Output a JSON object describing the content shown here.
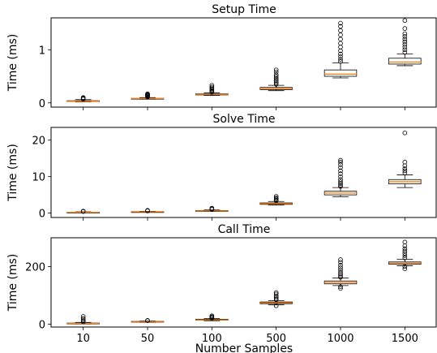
{
  "chart_data": [
    {
      "type": "box",
      "title": "Setup Time",
      "ylabel": "Time (ms)",
      "xlabel": "",
      "categories": [
        "10",
        "50",
        "100",
        "500",
        "1000",
        "1500"
      ],
      "ylim": [
        -0.08,
        1.6
      ],
      "yticks": [
        0,
        1
      ],
      "tick_labels": [
        "0",
        "1"
      ],
      "show_x_tick_labels": false,
      "boxes": [
        {
          "category": "10",
          "whislo": 0.02,
          "q1": 0.025,
          "med": 0.03,
          "q3": 0.04,
          "whishi": 0.06,
          "fliers": [
            0.07,
            0.08,
            0.09,
            0.1
          ]
        },
        {
          "category": "50",
          "whislo": 0.07,
          "q1": 0.075,
          "med": 0.08,
          "q3": 0.085,
          "whishi": 0.1,
          "fliers": [
            0.11,
            0.12,
            0.13,
            0.14,
            0.15,
            0.16,
            0.17
          ]
        },
        {
          "category": "100",
          "whislo": 0.14,
          "q1": 0.15,
          "med": 0.16,
          "q3": 0.17,
          "whishi": 0.19,
          "fliers": [
            0.2,
            0.22,
            0.24,
            0.26,
            0.28,
            0.3,
            0.33
          ]
        },
        {
          "category": "500",
          "whislo": 0.23,
          "q1": 0.25,
          "med": 0.27,
          "q3": 0.29,
          "whishi": 0.33,
          "fliers": [
            0.35,
            0.38,
            0.41,
            0.44,
            0.47,
            0.5,
            0.53,
            0.58,
            0.62
          ]
        },
        {
          "category": "1000",
          "whislo": 0.47,
          "q1": 0.5,
          "med": 0.54,
          "q3": 0.62,
          "whishi": 0.75,
          "fliers": [
            0.78,
            0.82,
            0.87,
            0.92,
            0.98,
            1.05,
            1.12,
            1.2,
            1.28,
            1.36,
            1.44,
            1.5
          ]
        },
        {
          "category": "1500",
          "whislo": 0.7,
          "q1": 0.73,
          "med": 0.77,
          "q3": 0.84,
          "whishi": 0.92,
          "fliers": [
            0.95,
            1.0,
            1.05,
            1.1,
            1.15,
            1.2,
            1.25,
            1.3,
            1.4,
            1.55
          ]
        }
      ]
    },
    {
      "type": "box",
      "title": "Solve Time",
      "ylabel": "Time (ms)",
      "xlabel": "",
      "categories": [
        "10",
        "50",
        "100",
        "500",
        "1000",
        "1500"
      ],
      "ylim": [
        -1.2,
        23.5
      ],
      "yticks": [
        0,
        10,
        20
      ],
      "tick_labels": [
        "0",
        "10",
        "20"
      ],
      "show_x_tick_labels": false,
      "boxes": [
        {
          "category": "10",
          "whislo": 0.1,
          "q1": 0.15,
          "med": 0.2,
          "q3": 0.25,
          "whishi": 0.35,
          "fliers": [
            0.45,
            0.55
          ]
        },
        {
          "category": "50",
          "whislo": 0.25,
          "q1": 0.3,
          "med": 0.35,
          "q3": 0.4,
          "whishi": 0.5,
          "fliers": [
            0.6,
            0.75
          ]
        },
        {
          "category": "100",
          "whislo": 0.5,
          "q1": 0.55,
          "med": 0.6,
          "q3": 0.7,
          "whishi": 0.85,
          "fliers": [
            1.0,
            1.2,
            1.35
          ]
        },
        {
          "category": "500",
          "whislo": 2.2,
          "q1": 2.4,
          "med": 2.6,
          "q3": 2.8,
          "whishi": 3.2,
          "fliers": [
            3.4,
            3.6,
            3.9,
            4.2,
            4.6
          ]
        },
        {
          "category": "1000",
          "whislo": 4.5,
          "q1": 5.0,
          "med": 5.5,
          "q3": 6.0,
          "whishi": 7.0,
          "fliers": [
            7.3,
            7.7,
            8.1,
            8.6,
            9.2,
            10.0,
            10.8,
            11.6,
            12.5,
            13.3,
            14.0,
            14.5
          ]
        },
        {
          "category": "1500",
          "whislo": 7.0,
          "q1": 8.0,
          "med": 8.6,
          "q3": 9.2,
          "whishi": 10.5,
          "fliers": [
            11.0,
            11.6,
            12.2,
            13.0,
            14.0,
            22.0
          ]
        }
      ]
    },
    {
      "type": "box",
      "title": "Call Time",
      "ylabel": "Time (ms)",
      "xlabel": "Number Samples",
      "categories": [
        "10",
        "50",
        "100",
        "500",
        "1000",
        "1500"
      ],
      "ylim": [
        -10,
        300
      ],
      "yticks": [
        0,
        200
      ],
      "tick_labels": [
        "0",
        "200"
      ],
      "show_x_tick_labels": true,
      "boxes": [
        {
          "category": "10",
          "whislo": 1,
          "q1": 2,
          "med": 3,
          "q3": 4,
          "whishi": 6,
          "fliers": [
            8,
            11,
            15,
            20,
            27
          ]
        },
        {
          "category": "50",
          "whislo": 7,
          "q1": 8,
          "med": 9,
          "q3": 10,
          "whishi": 11,
          "fliers": [
            12,
            13
          ]
        },
        {
          "category": "100",
          "whislo": 12,
          "q1": 14,
          "med": 15,
          "q3": 17,
          "whishi": 19,
          "fliers": [
            21,
            23,
            26,
            29
          ]
        },
        {
          "category": "500",
          "whislo": 67,
          "q1": 71,
          "med": 74,
          "q3": 77,
          "whishi": 82,
          "fliers": [
            85,
            88,
            93,
            98,
            105,
            110,
            64
          ]
        },
        {
          "category": "1000",
          "whislo": 134,
          "q1": 140,
          "med": 145,
          "q3": 150,
          "whishi": 160,
          "fliers": [
            163,
            168,
            174,
            180,
            188,
            196,
            205,
            215,
            224,
            130,
            124
          ]
        },
        {
          "category": "1500",
          "whislo": 203,
          "q1": 208,
          "med": 212,
          "q3": 216,
          "whishi": 225,
          "fliers": [
            230,
            238,
            246,
            254,
            262,
            272,
            285,
            200,
            192
          ]
        }
      ]
    }
  ]
}
